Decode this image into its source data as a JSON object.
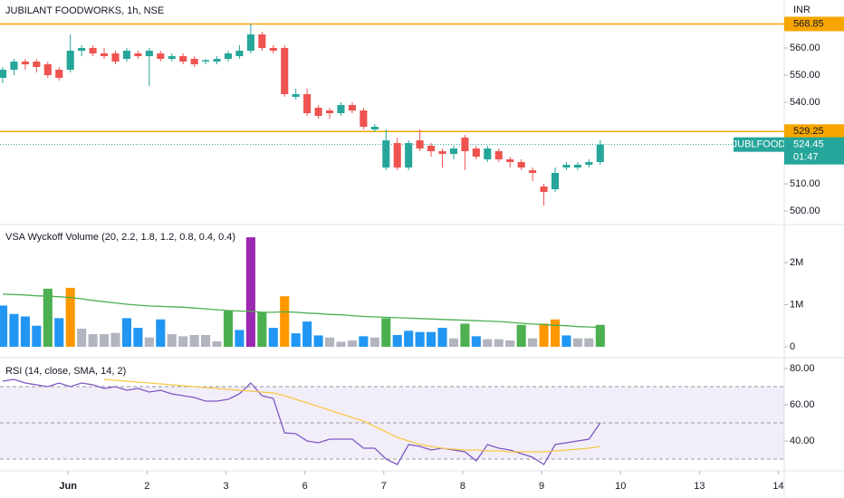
{
  "chart_data": [
    {
      "type": "candlestick",
      "title": "JUBILANT FOODWORKS, 1h, NSE",
      "currency": "INR",
      "xlim": [
        -0.241,
        69.32
      ],
      "ylim": [
        495,
        577.67
      ],
      "yticks": [
        {
          "value": 500,
          "label": "500.00"
        },
        {
          "value": 510,
          "label": "510.00"
        },
        {
          "value": 540,
          "label": "540.00"
        },
        {
          "value": 550,
          "label": "550.00"
        },
        {
          "value": 560,
          "label": "560.00"
        }
      ],
      "up_color": "#26a69a",
      "down_color": "#ef5350",
      "open": [
        549,
        552,
        555,
        555,
        554,
        552,
        552,
        559,
        560,
        558,
        558,
        556,
        558,
        557,
        558,
        556,
        557,
        556,
        555,
        555,
        556,
        557,
        559,
        565,
        560,
        560,
        542,
        543,
        538,
        537,
        536,
        539,
        537,
        530,
        516,
        525,
        516,
        526,
        524,
        522,
        521,
        527,
        523,
        519,
        522,
        519,
        518,
        515,
        509,
        508,
        516,
        516,
        517,
        518
      ],
      "high": [
        553,
        556,
        556,
        556,
        555,
        553,
        565,
        561,
        561,
        560,
        559,
        560,
        559,
        560,
        559,
        558,
        558,
        557,
        556,
        557,
        559,
        561,
        569,
        566,
        561,
        561,
        545,
        545,
        539,
        538,
        540,
        540,
        538,
        532,
        530,
        527,
        526,
        530,
        525,
        523,
        524,
        528,
        524,
        524,
        523,
        520,
        519,
        516,
        510,
        516,
        518,
        518,
        519,
        526
      ],
      "low": [
        547,
        550,
        552,
        551,
        549,
        548,
        551,
        557,
        557,
        556,
        554,
        555,
        556,
        546,
        555,
        555,
        554,
        553,
        554,
        554,
        555,
        556,
        558,
        559,
        558,
        542,
        541,
        535,
        534,
        534,
        535,
        536,
        530,
        529,
        515,
        515,
        515,
        522,
        520,
        516,
        519,
        515,
        519,
        518,
        518,
        516,
        515,
        511,
        502,
        507,
        515,
        515,
        516,
        517
      ],
      "close": [
        552,
        555,
        554,
        553,
        550,
        549,
        559,
        560,
        558,
        557,
        555,
        559,
        557,
        559,
        556,
        557,
        555,
        554,
        555.5,
        556,
        558,
        559,
        565,
        560,
        559,
        543,
        543,
        536,
        535,
        536,
        539,
        537,
        531,
        531,
        526,
        516,
        525,
        523,
        522,
        521,
        523,
        522,
        520,
        523,
        519,
        518,
        516,
        514,
        507,
        514,
        517,
        517,
        518,
        524.45
      ],
      "hlines": [
        {
          "value": 568.85,
          "color": "#f7a600"
        },
        {
          "value": 529.25,
          "color": "#f7a600"
        }
      ],
      "last_price": {
        "symbol": "JUBLFOOD",
        "value": 524.45,
        "countdown": "01:47",
        "color": "#26a69a"
      }
    },
    {
      "type": "bar",
      "title": "VSA Wyckoff Volume (20, 2.2, 1.8, 1.2, 0.8, 0.4, 0.4)",
      "xlim": [
        -0.241,
        69.32
      ],
      "ylim": [
        -258000,
        2903000
      ],
      "yticks": [
        0,
        {
          "value": 1000000,
          "label": "1M"
        },
        {
          "value": 2000000,
          "label": "2M"
        }
      ],
      "series": [
        {
          "values": [
            980000,
            780000,
            720000,
            500000,
            1380000,
            680000,
            1400000,
            430000,
            300000,
            300000,
            330000,
            680000,
            450000,
            220000,
            650000,
            300000,
            250000,
            280000,
            280000,
            130000,
            850000,
            400000,
            2600000,
            820000,
            450000,
            1200000,
            320000,
            600000,
            270000,
            220000,
            120000,
            150000,
            250000,
            220000,
            680000,
            280000,
            380000,
            350000,
            350000,
            450000,
            200000,
            550000,
            250000,
            180000,
            180000,
            150000,
            520000,
            200000,
            550000,
            650000,
            270000,
            200000,
            200000,
            520000
          ],
          "colors": [
            "#2196f3",
            "#2196f3",
            "#2196f3",
            "#2196f3",
            "#4caf50",
            "#2196f3",
            "#ff9800",
            "#b2b5be",
            "#b2b5be",
            "#b2b5be",
            "#b2b5be",
            "#2196f3",
            "#2196f3",
            "#b2b5be",
            "#2196f3",
            "#b2b5be",
            "#b2b5be",
            "#b2b5be",
            "#b2b5be",
            "#b2b5be",
            "#4caf50",
            "#2196f3",
            "#9c27b0",
            "#4caf50",
            "#2196f3",
            "#ff9800",
            "#2196f3",
            "#2196f3",
            "#2196f3",
            "#b2b5be",
            "#b2b5be",
            "#b2b5be",
            "#2196f3",
            "#b2b5be",
            "#4caf50",
            "#2196f3",
            "#2196f3",
            "#2196f3",
            "#2196f3",
            "#2196f3",
            "#b2b5be",
            "#4caf50",
            "#2196f3",
            "#b2b5be",
            "#b2b5be",
            "#b2b5be",
            "#4caf50",
            "#b2b5be",
            "#ff9800",
            "#ff9800",
            "#2196f3",
            "#b2b5be",
            "#b2b5be",
            "#4caf50"
          ]
        },
        {
          "type": "line",
          "color": "#4caf50",
          "values": [
            1250000,
            1240000,
            1230000,
            1210000,
            1200000,
            1190000,
            1170000,
            1140000,
            1100000,
            1070000,
            1040000,
            1010000,
            990000,
            970000,
            960000,
            950000,
            940000,
            920000,
            900000,
            880000,
            860000,
            850000,
            840000,
            820000,
            820000,
            830000,
            820000,
            800000,
            790000,
            770000,
            760000,
            740000,
            720000,
            710000,
            700000,
            690000,
            680000,
            670000,
            660000,
            650000,
            640000,
            630000,
            620000,
            610000,
            600000,
            580000,
            560000,
            540000,
            530000,
            510000,
            500000,
            480000,
            470000,
            460000
          ]
        }
      ]
    },
    {
      "type": "line",
      "title": "RSI (14, close, SMA, 14, 2)",
      "xlim": [
        -0.241,
        69.32
      ],
      "ylim": [
        23.5,
        86
      ],
      "yticks": [
        {
          "value": 40,
          "label": "40.00"
        },
        {
          "value": 60,
          "label": "60.00"
        },
        {
          "value": 80,
          "label": "80.00"
        }
      ],
      "xticks": [
        {
          "value": 5.8,
          "label": "Jun"
        },
        {
          "value": 12.8,
          "label": "2"
        },
        {
          "value": 19.8,
          "label": "3"
        },
        {
          "value": 26.8,
          "label": "6"
        },
        {
          "value": 33.8,
          "label": "7"
        },
        {
          "value": 40.8,
          "label": "8"
        },
        {
          "value": 47.8,
          "label": "9"
        },
        {
          "value": 54.8,
          "label": "10"
        },
        {
          "value": 61.8,
          "label": "13"
        },
        {
          "value": 68.8,
          "label": "14"
        }
      ],
      "bands": [
        70,
        50,
        30
      ],
      "band_fill": "rgba(126,87,194,0.1)",
      "series": [
        {
          "color": "#7e57c2",
          "values": [
            73,
            74,
            72,
            71,
            70,
            72,
            70,
            72,
            71,
            69,
            70,
            68,
            69,
            67,
            68,
            66,
            65,
            64,
            62,
            62,
            63,
            66,
            72,
            65,
            63.5,
            44.5,
            44,
            40,
            39,
            41,
            41,
            41,
            36,
            36,
            30,
            27,
            38,
            37,
            35,
            36,
            35,
            34,
            29,
            38,
            36,
            35,
            33,
            31,
            27,
            38,
            39,
            40,
            41,
            50
          ]
        },
        {
          "color": "#f7c948",
          "values": [
            null,
            null,
            null,
            null,
            null,
            null,
            null,
            null,
            null,
            74,
            73.5,
            73,
            72.5,
            72,
            71.5,
            71,
            70.5,
            70,
            69.5,
            69,
            68.5,
            68,
            67.5,
            67,
            66.5,
            65,
            63,
            61,
            59,
            57,
            55,
            53,
            51,
            48,
            45,
            42,
            40,
            38,
            37,
            36,
            35.5,
            35,
            35,
            34.5,
            34.5,
            34,
            34,
            34,
            34,
            34.5,
            35,
            35.5,
            36,
            37
          ]
        }
      ]
    }
  ]
}
